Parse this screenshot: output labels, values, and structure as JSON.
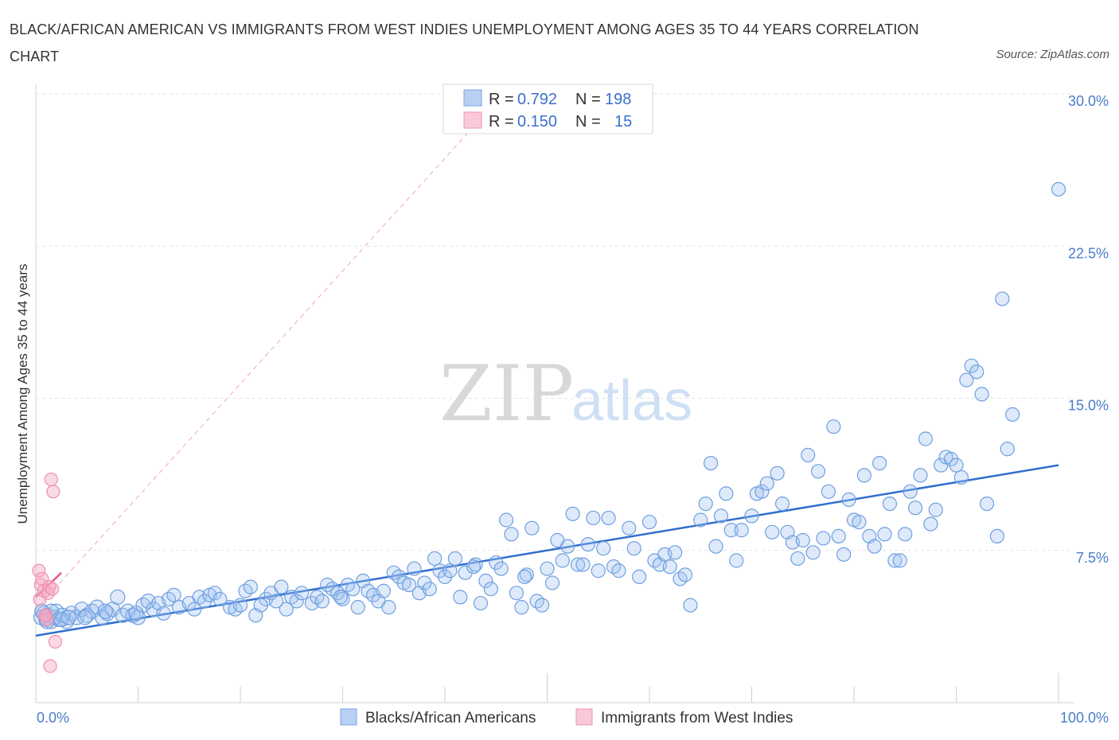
{
  "chart_data": {
    "type": "scatter",
    "title": "BLACK/AFRICAN AMERICAN VS IMMIGRANTS FROM WEST INDIES UNEMPLOYMENT AMONG AGES 35 TO 44 YEARS CORRELATION CHART",
    "source": "Source: ZipAtlas.com",
    "xlabel": "",
    "ylabel": "Unemployment Among Ages 35 to 44 years",
    "xlim": [
      0,
      100
    ],
    "ylim": [
      0,
      30
    ],
    "x_tick_labels": [
      "0.0%",
      "100.0%"
    ],
    "y_ticks": [
      7.5,
      15.0,
      22.5,
      30.0
    ],
    "y_tick_labels": [
      "7.5%",
      "15.0%",
      "22.5%",
      "30.0%"
    ],
    "watermark": {
      "zip": "ZIP",
      "atlas": "atlas"
    },
    "colors": {
      "blue": "#6fa0e0",
      "blue_line": "#2f6fd0",
      "pink": "#f08aab",
      "pink_line": "#e85c8c"
    },
    "legend": [
      {
        "name": "Blacks/African Americans",
        "r_label": "R =",
        "r": "0.792",
        "n_label": "N =",
        "n": "198"
      },
      {
        "name": "Immigrants from West Indies",
        "r_label": "R =",
        "r": "0.150",
        "n_label": "N =",
        "n": "15"
      }
    ],
    "series": [
      {
        "name": "Blacks/African Americans",
        "trend": {
          "x": [
            0,
            100
          ],
          "y": [
            3.3,
            11.7
          ]
        },
        "points": [
          [
            0.5,
            4.2
          ],
          [
            0.8,
            4.4
          ],
          [
            1,
            4.1
          ],
          [
            1.2,
            4.3
          ],
          [
            1.5,
            4.0
          ],
          [
            1.8,
            4.2
          ],
          [
            2,
            4.5
          ],
          [
            2.3,
            4.1
          ],
          [
            2.6,
            4.3
          ],
          [
            3,
            4.0
          ],
          [
            3.5,
            4.4
          ],
          [
            4,
            4.2
          ],
          [
            4.5,
            4.6
          ],
          [
            5,
            4.3
          ],
          [
            5.5,
            4.5
          ],
          [
            6,
            4.7
          ],
          [
            6.5,
            4.2
          ],
          [
            7,
            4.4
          ],
          [
            7.5,
            4.6
          ],
          [
            8,
            5.2
          ],
          [
            8.5,
            4.3
          ],
          [
            9,
            4.5
          ],
          [
            9.5,
            4.3
          ],
          [
            10,
            4.2
          ],
          [
            10.5,
            4.8
          ],
          [
            11,
            5.0
          ],
          [
            11.5,
            4.6
          ],
          [
            12,
            4.9
          ],
          [
            12.5,
            4.4
          ],
          [
            13,
            5.1
          ],
          [
            13.5,
            5.3
          ],
          [
            14,
            4.7
          ],
          [
            15,
            4.9
          ],
          [
            15.5,
            4.6
          ],
          [
            16,
            5.2
          ],
          [
            16.5,
            5.0
          ],
          [
            17,
            5.3
          ],
          [
            17.5,
            5.4
          ],
          [
            18,
            5.1
          ],
          [
            19,
            4.7
          ],
          [
            19.5,
            4.6
          ],
          [
            20,
            4.8
          ],
          [
            20.5,
            5.5
          ],
          [
            21,
            5.7
          ],
          [
            21.5,
            4.3
          ],
          [
            22.5,
            5.1
          ],
          [
            23,
            5.4
          ],
          [
            23.5,
            5.0
          ],
          [
            24,
            5.7
          ],
          [
            24.5,
            4.6
          ],
          [
            25,
            5.2
          ],
          [
            25.5,
            5.0
          ],
          [
            26,
            5.4
          ],
          [
            27,
            4.9
          ],
          [
            27.5,
            5.2
          ],
          [
            28,
            5.0
          ],
          [
            28.5,
            5.8
          ],
          [
            29,
            5.6
          ],
          [
            29.5,
            5.4
          ],
          [
            30,
            5.1
          ],
          [
            30.5,
            5.8
          ],
          [
            31,
            5.6
          ],
          [
            31.5,
            4.7
          ],
          [
            32,
            6.0
          ],
          [
            32.5,
            5.5
          ],
          [
            33,
            5.3
          ],
          [
            33.5,
            5.0
          ],
          [
            34,
            5.5
          ],
          [
            34.5,
            4.7
          ],
          [
            35,
            6.4
          ],
          [
            35.5,
            6.2
          ],
          [
            36,
            5.9
          ],
          [
            37,
            6.6
          ],
          [
            37.5,
            5.4
          ],
          [
            38,
            5.9
          ],
          [
            38.5,
            5.6
          ],
          [
            39,
            7.1
          ],
          [
            39.5,
            6.5
          ],
          [
            40,
            6.2
          ],
          [
            40.5,
            6.5
          ],
          [
            41,
            7.1
          ],
          [
            41.5,
            5.2
          ],
          [
            42,
            6.4
          ],
          [
            43,
            6.8
          ],
          [
            43.5,
            4.9
          ],
          [
            44,
            6.0
          ],
          [
            44.5,
            5.6
          ],
          [
            45,
            6.9
          ],
          [
            45.5,
            6.6
          ],
          [
            46,
            9.0
          ],
          [
            46.5,
            8.3
          ],
          [
            47,
            5.4
          ],
          [
            47.5,
            4.7
          ],
          [
            48,
            6.3
          ],
          [
            48.5,
            8.6
          ],
          [
            49,
            5.0
          ],
          [
            49.5,
            4.8
          ],
          [
            50,
            6.6
          ],
          [
            50.5,
            5.9
          ],
          [
            51,
            8.0
          ],
          [
            51.5,
            7.0
          ],
          [
            52,
            7.7
          ],
          [
            52.5,
            9.3
          ],
          [
            53,
            6.8
          ],
          [
            53.5,
            6.8
          ],
          [
            54,
            7.8
          ],
          [
            54.5,
            9.1
          ],
          [
            55,
            6.5
          ],
          [
            55.5,
            7.6
          ],
          [
            56,
            9.1
          ],
          [
            56.5,
            6.7
          ],
          [
            57,
            6.5
          ],
          [
            58,
            8.6
          ],
          [
            58.5,
            7.6
          ],
          [
            59,
            6.2
          ],
          [
            60,
            8.9
          ],
          [
            60.5,
            7.0
          ],
          [
            61,
            6.8
          ],
          [
            61.5,
            7.3
          ],
          [
            62,
            6.7
          ],
          [
            62.5,
            7.4
          ],
          [
            63,
            6.1
          ],
          [
            63.5,
            6.3
          ],
          [
            64,
            4.8
          ],
          [
            65,
            9.0
          ],
          [
            65.5,
            9.8
          ],
          [
            66,
            11.8
          ],
          [
            66.5,
            7.7
          ],
          [
            67,
            9.2
          ],
          [
            67.5,
            10.3
          ],
          [
            68,
            8.5
          ],
          [
            68.5,
            7.0
          ],
          [
            69,
            8.5
          ],
          [
            70,
            9.2
          ],
          [
            70.5,
            10.3
          ],
          [
            71,
            10.4
          ],
          [
            71.5,
            10.8
          ],
          [
            72,
            8.4
          ],
          [
            72.5,
            11.3
          ],
          [
            73,
            9.8
          ],
          [
            73.5,
            8.4
          ],
          [
            74,
            7.9
          ],
          [
            74.5,
            7.1
          ],
          [
            75,
            8.0
          ],
          [
            75.5,
            12.2
          ],
          [
            76,
            7.4
          ],
          [
            76.5,
            11.4
          ],
          [
            77,
            8.1
          ],
          [
            77.5,
            10.4
          ],
          [
            78,
            13.6
          ],
          [
            78.5,
            8.2
          ],
          [
            79,
            7.3
          ],
          [
            79.5,
            10.0
          ],
          [
            80,
            9.0
          ],
          [
            80.5,
            8.9
          ],
          [
            81,
            11.2
          ],
          [
            81.5,
            8.2
          ],
          [
            82,
            7.7
          ],
          [
            82.5,
            11.8
          ],
          [
            83,
            8.3
          ],
          [
            83.5,
            9.8
          ],
          [
            84,
            7.0
          ],
          [
            84.5,
            7.0
          ],
          [
            85,
            8.3
          ],
          [
            85.5,
            10.4
          ],
          [
            86,
            9.6
          ],
          [
            86.5,
            11.2
          ],
          [
            87,
            13.0
          ],
          [
            87.5,
            8.8
          ],
          [
            88,
            9.5
          ],
          [
            88.5,
            11.7
          ],
          [
            89,
            12.1
          ],
          [
            89.5,
            12.0
          ],
          [
            90,
            11.7
          ],
          [
            90.5,
            11.1
          ],
          [
            91,
            15.9
          ],
          [
            91.5,
            16.6
          ],
          [
            92,
            16.3
          ],
          [
            92.5,
            15.2
          ],
          [
            93,
            9.8
          ],
          [
            94,
            8.2
          ],
          [
            94.5,
            19.9
          ],
          [
            95,
            12.5
          ],
          [
            95.5,
            14.2
          ],
          [
            100,
            25.3
          ],
          [
            2.5,
            4.1
          ],
          [
            1.5,
            4.5
          ],
          [
            3.2,
            4.2
          ],
          [
            0.6,
            4.5
          ],
          [
            1.1,
            4.0
          ],
          [
            4.8,
            4.2
          ],
          [
            6.8,
            4.5
          ],
          [
            9.8,
            4.4
          ],
          [
            22,
            4.8
          ],
          [
            29.8,
            5.2
          ],
          [
            36.5,
            5.8
          ],
          [
            42.8,
            6.7
          ],
          [
            47.8,
            6.2
          ]
        ]
      },
      {
        "name": "Immigrants from West Indies",
        "trend": {
          "x": [
            0,
            2.5
          ],
          "y": [
            5.2,
            6.4
          ]
        },
        "points": [
          [
            0.3,
            6.5
          ],
          [
            0.5,
            5.8
          ],
          [
            0.6,
            6.1
          ],
          [
            0.8,
            5.5
          ],
          [
            1.0,
            4.3
          ],
          [
            1.1,
            4.1
          ],
          [
            1.3,
            5.7
          ],
          [
            1.5,
            11.0
          ],
          [
            1.7,
            10.4
          ],
          [
            1.9,
            3.0
          ],
          [
            1.4,
            1.8
          ],
          [
            0.4,
            5.1
          ],
          [
            0.9,
            4.3
          ],
          [
            1.2,
            5.4
          ],
          [
            1.6,
            5.6
          ]
        ]
      }
    ]
  }
}
